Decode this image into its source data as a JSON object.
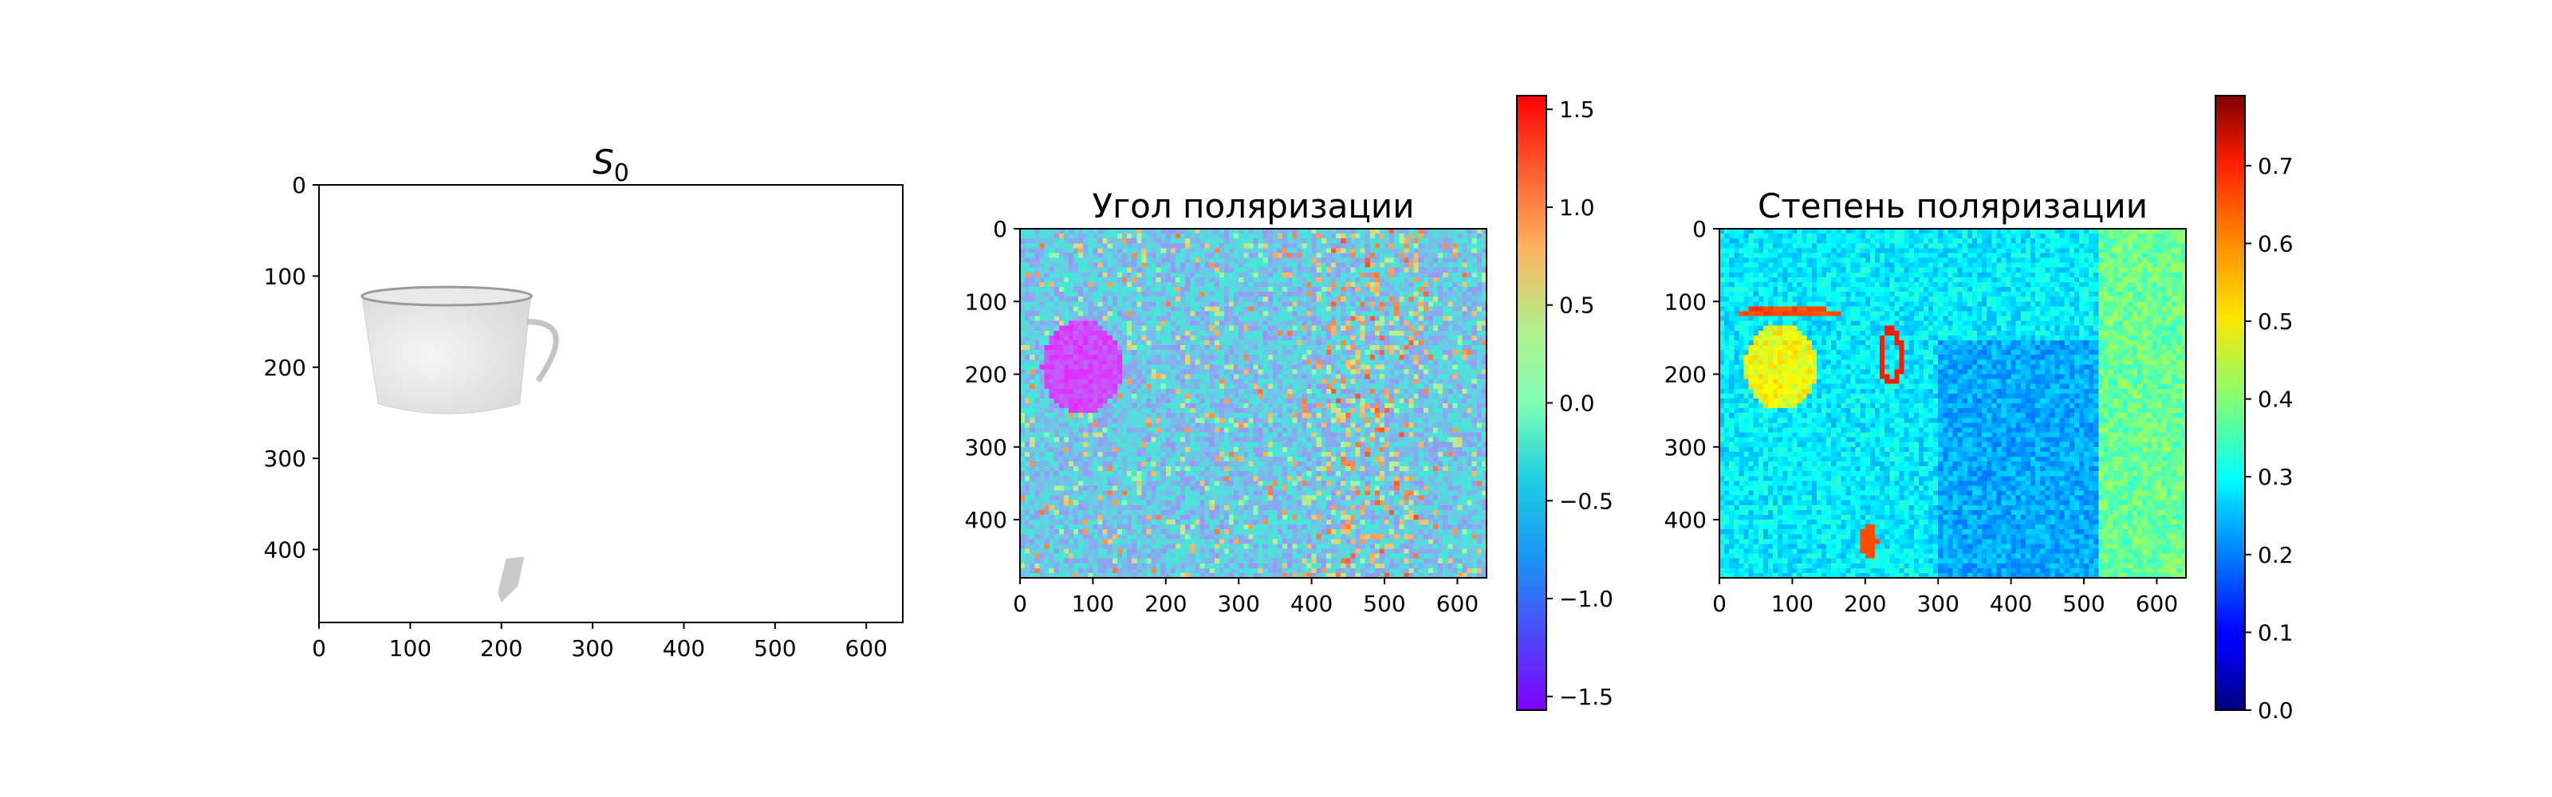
{
  "chart_data": [
    {
      "type": "heatmap",
      "title": "S",
      "title_subscript": "0",
      "xlabel": "",
      "ylabel": "",
      "xlim": [
        0,
        640
      ],
      "ylim": [
        480,
        0
      ],
      "x_ticks": [
        0,
        100,
        200,
        300,
        400,
        500,
        600
      ],
      "y_ticks": [
        0,
        100,
        200,
        300,
        400
      ],
      "colormap": "grayscale",
      "features": [
        {
          "name": "cup",
          "x_range": [
            45,
            275
          ],
          "y_range": [
            115,
            255
          ]
        },
        {
          "name": "small dark object",
          "x_range": [
            190,
            230
          ],
          "y_range": [
            405,
            460
          ]
        }
      ]
    },
    {
      "type": "heatmap",
      "title": "Угол поляризации",
      "xlabel": "",
      "ylabel": "",
      "xlim": [
        0,
        640
      ],
      "ylim": [
        480,
        0
      ],
      "x_ticks": [
        0,
        100,
        200,
        300,
        400,
        500,
        600
      ],
      "y_ticks": [
        0,
        100,
        200,
        300,
        400
      ],
      "colormap": "rainbow",
      "colorbar": {
        "range": [
          -1.57,
          1.57
        ],
        "ticks": [
          -1.5,
          -1.0,
          -0.5,
          0.0,
          0.5,
          1.0,
          1.5
        ]
      }
    },
    {
      "type": "heatmap",
      "title": "Степень поляризации",
      "xlabel": "",
      "ylabel": "",
      "xlim": [
        0,
        640
      ],
      "ylim": [
        480,
        0
      ],
      "x_ticks": [
        0,
        100,
        200,
        300,
        400,
        500,
        600
      ],
      "y_ticks": [
        0,
        100,
        200,
        300,
        400
      ],
      "colormap": "jet",
      "colorbar": {
        "range": [
          0.0,
          0.79
        ],
        "ticks": [
          0.0,
          0.1,
          0.2,
          0.3,
          0.4,
          0.5,
          0.6,
          0.7
        ]
      }
    }
  ]
}
